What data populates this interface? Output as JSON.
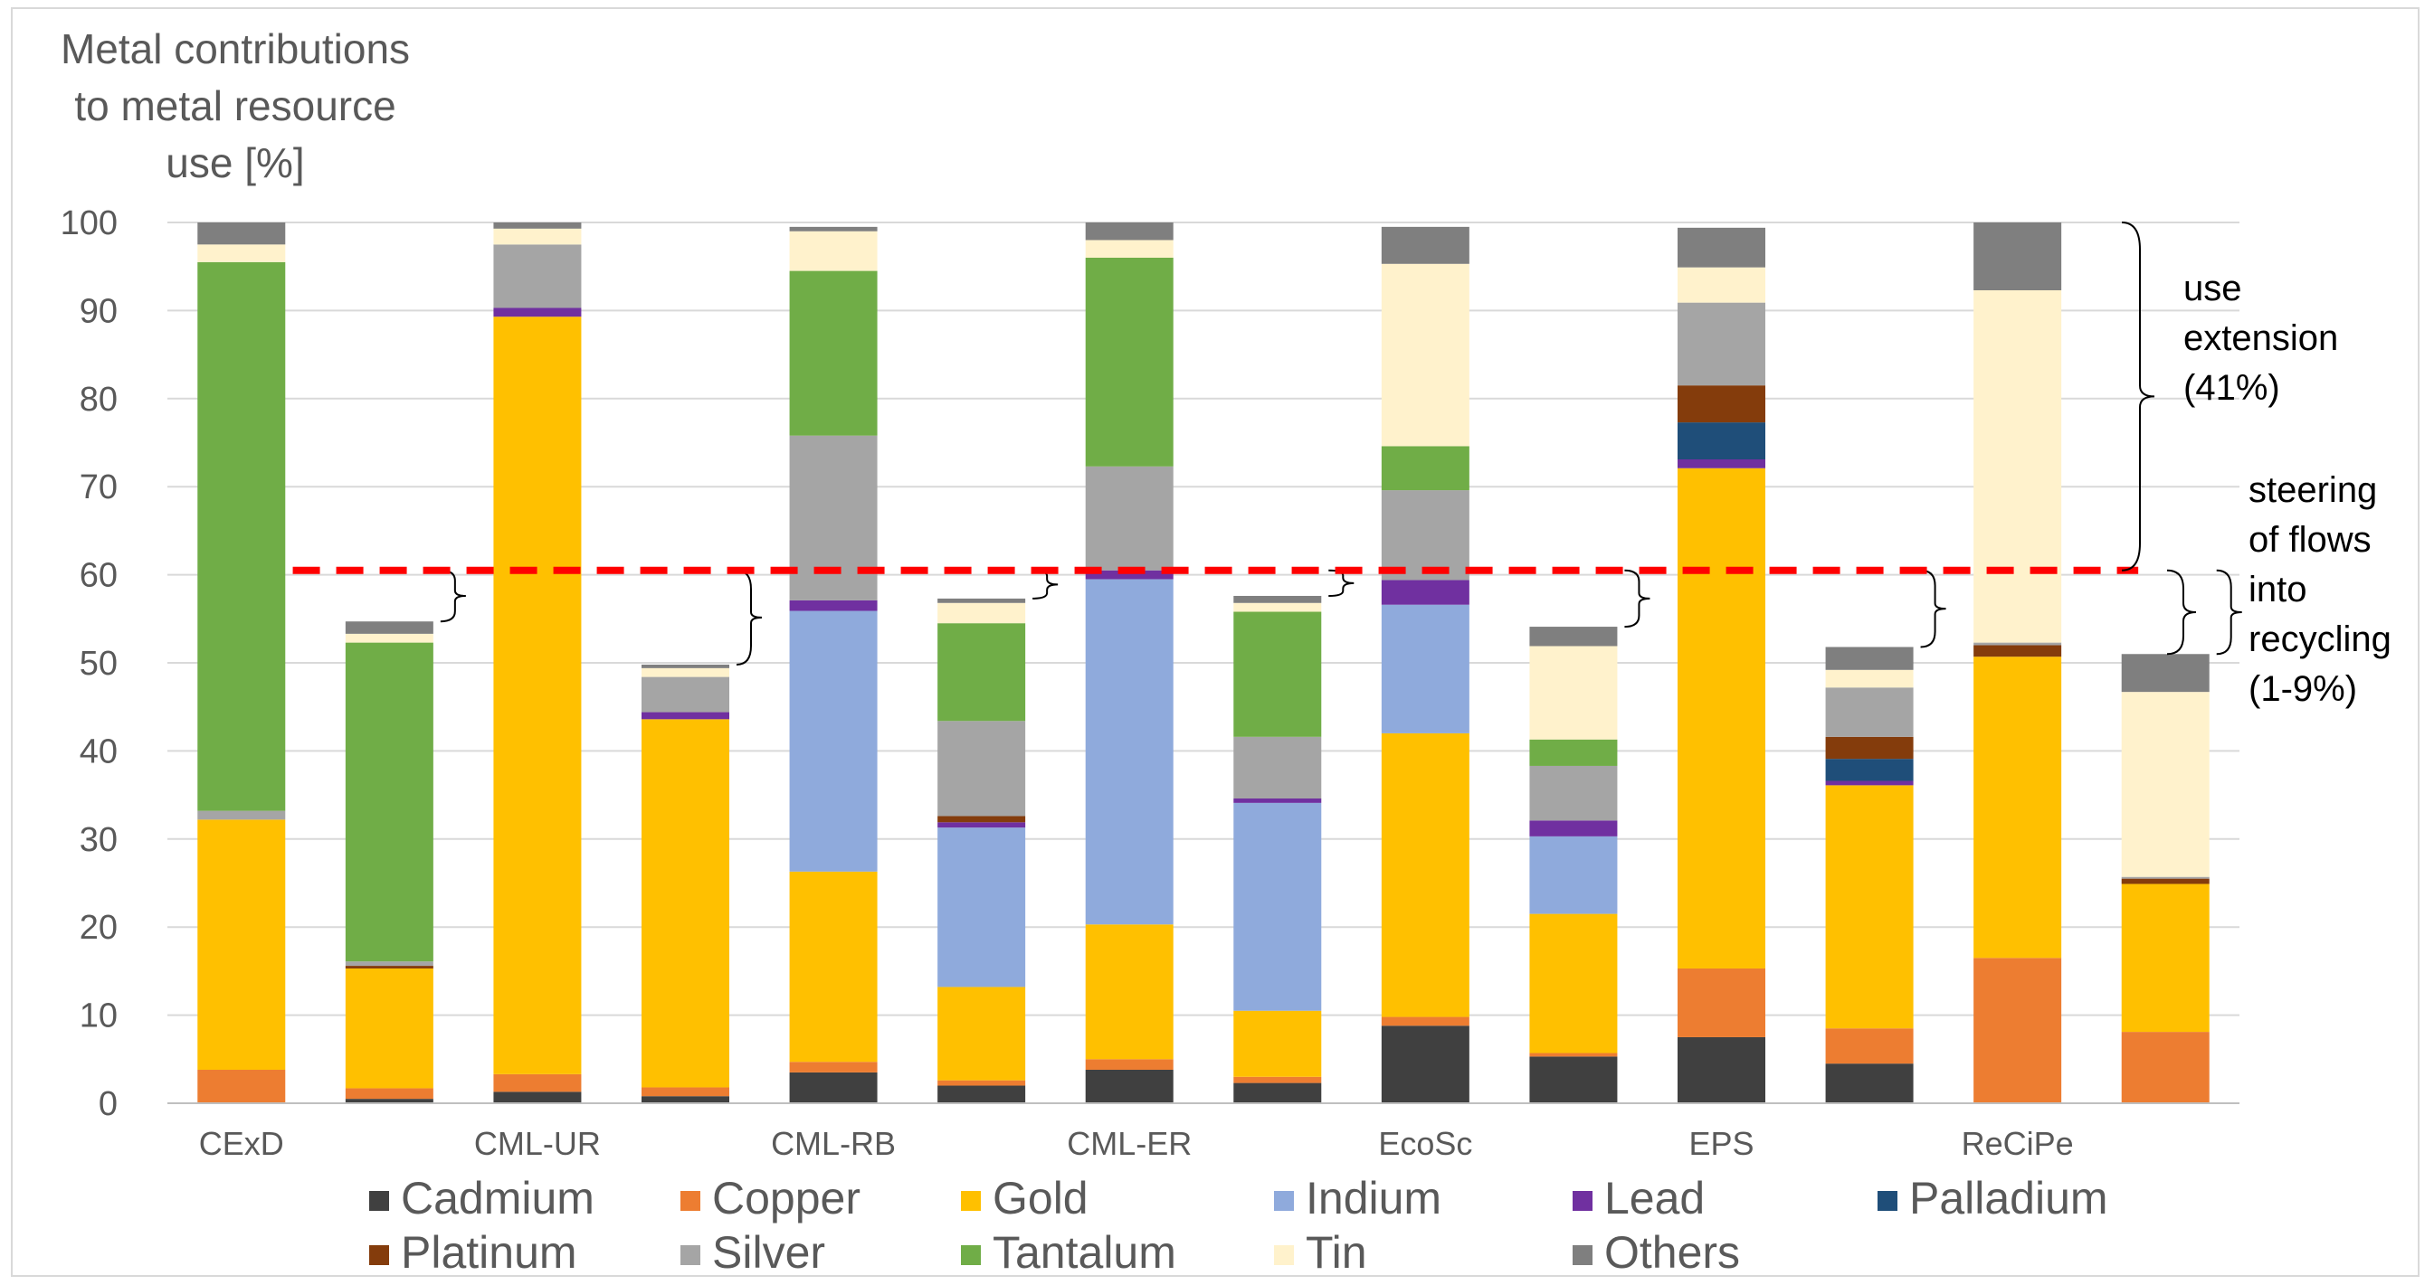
{
  "chart_data": {
    "type": "bar",
    "stacked": true,
    "ylabel": "Metal contributions to metal resource use  [%]",
    "ylabel_lines": [
      "Metal contributions",
      "to metal resource",
      "use  [%]"
    ],
    "ylim": [
      0,
      100
    ],
    "yticks": [
      0,
      10,
      20,
      30,
      40,
      50,
      60,
      70,
      80,
      90,
      100
    ],
    "grid": true,
    "legend_position": "bottom",
    "group_labels": [
      "CExD",
      "CML-UR",
      "CML-RB",
      "CML-ER",
      "EcoSc",
      "EPS",
      "ReCiPe"
    ],
    "bars_per_group": 2,
    "series": [
      {
        "name": "Cadmium",
        "color": "#404040",
        "values": [
          0,
          0.5,
          1.3,
          0.8,
          3.5,
          2.0,
          3.8,
          2.3,
          8.8,
          5.3,
          7.5,
          4.5,
          0,
          0
        ]
      },
      {
        "name": "Copper",
        "color": "#ed7d31",
        "values": [
          3.8,
          1.2,
          2.0,
          1.0,
          1.2,
          0.6,
          1.2,
          0.7,
          1.0,
          0.4,
          7.8,
          4.0,
          16.5,
          8.1
        ]
      },
      {
        "name": "Gold",
        "color": "#ffc000",
        "values": [
          28.4,
          13.6,
          86.0,
          41.8,
          21.6,
          10.6,
          15.3,
          7.5,
          32.2,
          15.8,
          56.8,
          27.6,
          34.2,
          16.8
        ]
      },
      {
        "name": "Indium",
        "color": "#8faadc",
        "values": [
          0,
          0,
          0,
          0,
          29.6,
          18.1,
          39.2,
          23.6,
          14.6,
          8.8,
          0,
          0,
          0,
          0
        ]
      },
      {
        "name": "Lead",
        "color": "#7030a0",
        "values": [
          0,
          0,
          1.0,
          0.8,
          1.2,
          0.6,
          1.0,
          0.5,
          2.8,
          1.8,
          1.0,
          0.5,
          0,
          0
        ]
      },
      {
        "name": "Palladium",
        "color": "#1f4e79",
        "values": [
          0,
          0,
          0,
          0,
          0,
          0,
          0,
          0,
          0,
          0,
          4.2,
          2.5,
          0,
          0
        ]
      },
      {
        "name": "Platinum",
        "color": "#843c0c",
        "values": [
          0,
          0.3,
          0,
          0,
          0,
          0.7,
          0,
          0,
          0,
          0,
          4.2,
          2.5,
          1.3,
          0.6
        ]
      },
      {
        "name": "Silver",
        "color": "#a5a5a5",
        "values": [
          1.0,
          0.5,
          7.2,
          4.0,
          18.7,
          10.8,
          11.8,
          7.0,
          10.2,
          6.2,
          9.4,
          5.6,
          0.3,
          0.2
        ]
      },
      {
        "name": "Tantalum",
        "color": "#70ad47",
        "values": [
          62.3,
          36.2,
          0,
          0,
          18.7,
          11.1,
          23.7,
          14.2,
          5.0,
          3.0,
          0,
          0,
          0,
          0
        ]
      },
      {
        "name": "Tin",
        "color": "#fff2cc",
        "values": [
          2.0,
          1.0,
          1.8,
          1.0,
          4.5,
          2.3,
          2.0,
          1.0,
          20.7,
          10.6,
          4.0,
          2.0,
          40.0,
          21.0
        ]
      },
      {
        "name": "Others",
        "color": "#7f7f7f",
        "values": [
          2.5,
          1.4,
          0.7,
          0.4,
          0.5,
          0.5,
          2.0,
          0.8,
          4.2,
          2.2,
          4.5,
          2.6,
          7.7,
          4.3
        ]
      }
    ],
    "threshold": {
      "value": 60.5,
      "color": "#ff0000",
      "style": "dashed"
    },
    "annotations": {
      "use_extension": [
        "use",
        "extension",
        "(41%)"
      ],
      "steering": [
        "steering",
        "of flows",
        "into",
        "recycling",
        "(1-9%)"
      ]
    }
  }
}
